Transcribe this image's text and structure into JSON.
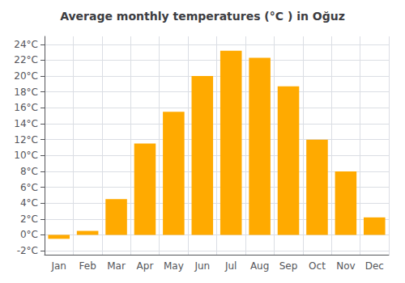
{
  "chart_data": {
    "type": "bar",
    "title": "Average monthly temperatures (°C ) in Oğuz",
    "categories": [
      "Jan",
      "Feb",
      "Mar",
      "Apr",
      "May",
      "Jun",
      "Jul",
      "Aug",
      "Sep",
      "Oct",
      "Nov",
      "Dec"
    ],
    "values": [
      -0.5,
      0.5,
      4.5,
      11.5,
      15.5,
      20.0,
      23.2,
      22.3,
      18.7,
      12.0,
      8.0,
      2.2
    ],
    "color": "#FFAA00",
    "ylim": [
      -2.5,
      25.0
    ],
    "yticks": [
      {
        "value": -2,
        "label": "-2°C"
      },
      {
        "value": 0,
        "label": "0°C"
      },
      {
        "value": 2,
        "label": "2°C"
      },
      {
        "value": 4,
        "label": "4°C"
      },
      {
        "value": 6,
        "label": "6°C"
      },
      {
        "value": 8,
        "label": "8°C"
      },
      {
        "value": 10,
        "label": "10°C"
      },
      {
        "value": 12,
        "label": "12°C"
      },
      {
        "value": 14,
        "label": "14°C"
      },
      {
        "value": 16,
        "label": "16°C"
      },
      {
        "value": 18,
        "label": "18°C"
      },
      {
        "value": 20,
        "label": "20°C"
      },
      {
        "value": 22,
        "label": "22°C"
      },
      {
        "value": 24,
        "label": "24°C"
      }
    ],
    "grid": true
  }
}
